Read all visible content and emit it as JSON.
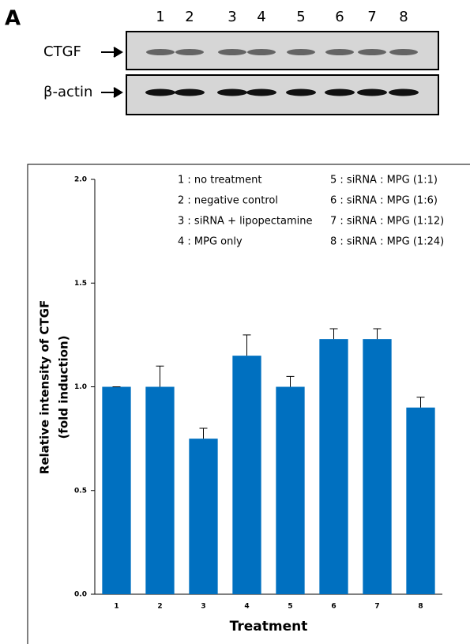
{
  "blot": {
    "panel": "A",
    "lanes": [
      "1",
      "2",
      "3",
      "4",
      "5",
      "6",
      "7",
      "8"
    ],
    "rows": [
      "CTGF",
      "β-actin"
    ]
  },
  "chart_data": {
    "type": "bar",
    "ylabel": [
      "Relative intensity of CTGF",
      "(fold induction)"
    ],
    "xlabel": "Treatment",
    "categories": [
      "1",
      "2",
      "3",
      "4",
      "5",
      "6",
      "7",
      "8"
    ],
    "values": [
      1.0,
      1.0,
      0.75,
      1.15,
      1.0,
      1.23,
      1.23,
      0.9
    ],
    "errors": [
      0,
      0.1,
      0.05,
      0.1,
      0.05,
      0.05,
      0.05,
      0.05
    ],
    "color": "#0070c0",
    "ylim": [
      0,
      2
    ],
    "yticks": [
      {
        "value": 0,
        "label": "0.0"
      },
      0.5,
      {
        "value": 1,
        "label": "1.0"
      },
      1.5,
      {
        "value": 2,
        "label": "2.0"
      }
    ],
    "annotations": [
      "1 : no treatment",
      "2 : negative control",
      "3 : siRNA + lipopectamine",
      "4 : MPG only",
      "5 : siRNA : MPG (1:1)",
      "6 : siRNA : MPG (1:6)",
      "7 : siRNA : MPG (1:12)",
      "8 : siRNA : MPG (1:24)"
    ]
  }
}
